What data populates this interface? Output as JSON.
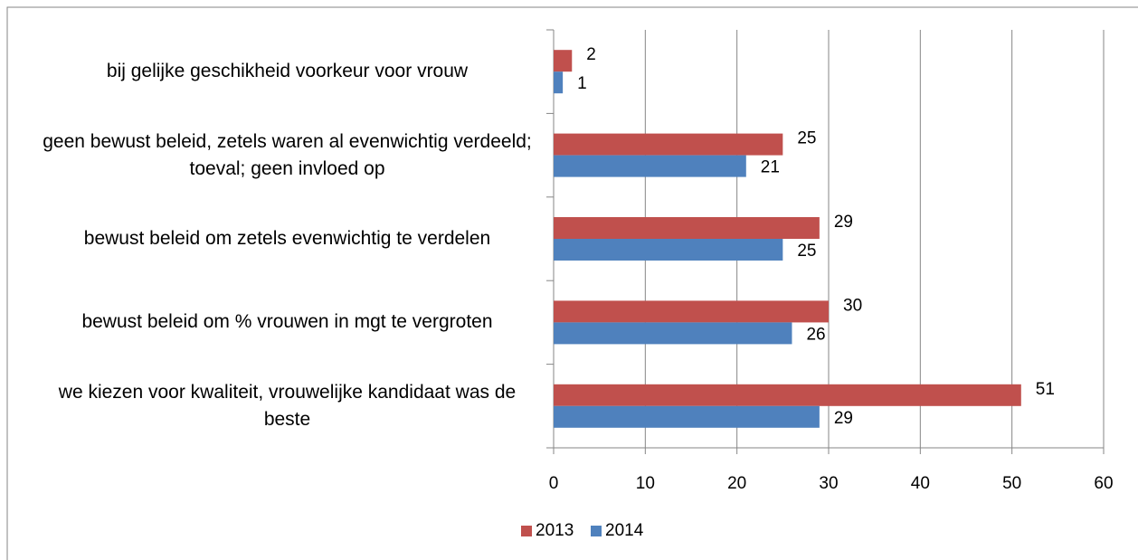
{
  "chart_data": {
    "type": "bar",
    "orientation": "horizontal",
    "categories": [
      "bij gelijke geschikheid voorkeur voor vrouw",
      "geen bewust beleid, zetels waren al evenwichtig verdeeld; toeval; geen invloed op",
      "bewust beleid om zetels evenwichtig te verdelen",
      "bewust beleid om % vrouwen in mgt te vergroten",
      "we kiezen voor kwaliteit, vrouwelijke kandidaat was de beste"
    ],
    "series": [
      {
        "name": "2013",
        "color": "#c0504d",
        "values": [
          2,
          25,
          29,
          30,
          51
        ]
      },
      {
        "name": "2014",
        "color": "#4f81bd",
        "values": [
          1,
          21,
          25,
          26,
          29
        ]
      }
    ],
    "xlim": [
      0,
      60
    ],
    "xticks": [
      0,
      10,
      20,
      30,
      40,
      50,
      60
    ],
    "grid": true,
    "legend": "bottom"
  }
}
